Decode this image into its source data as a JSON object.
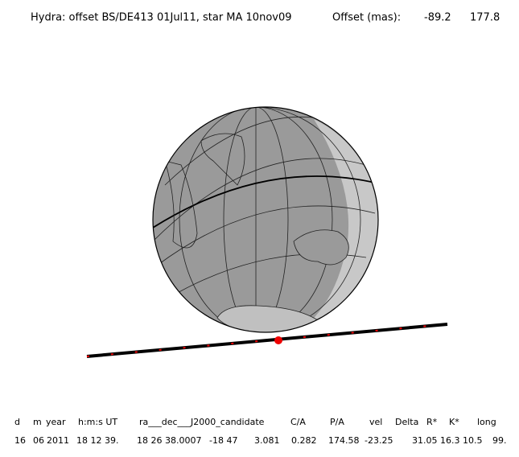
{
  "header": {
    "title": "Hydra: offset BS/DE413 01Jul11, star MA 10nov09",
    "offset_label": "Offset (mas):",
    "offset_x": "-89.2",
    "offset_y": "177.8"
  },
  "table": {
    "columns": [
      "d",
      "m",
      "year",
      "h:m:s UT",
      "ra___dec___J2000_candidate",
      "C/A",
      "P/A",
      "vel",
      "Delta",
      "R*",
      "K*",
      "long"
    ],
    "rows": [
      [
        "16",
        "06",
        "2011",
        "18 12 39.",
        "18 26 38.0007",
        "-18 47",
        "3.081",
        "0.282",
        "174.58",
        "-23.25",
        "31.05",
        "16.3",
        "10.5",
        "99."
      ]
    ]
  }
}
